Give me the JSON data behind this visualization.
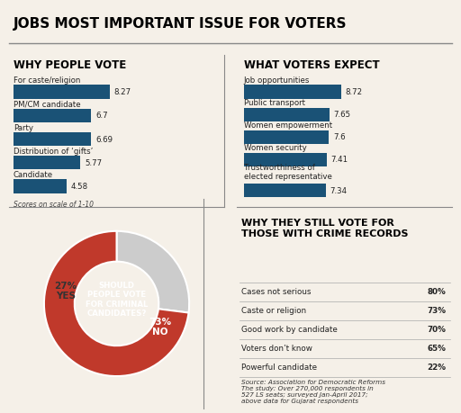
{
  "title": "JOBS MOST IMPORTANT ISSUE FOR VOTERS",
  "section1_title": "WHY PEOPLE VOTE",
  "section1_note": "Scores on scale of 1-10",
  "section1_labels": [
    "For caste/religion",
    "PM/CM candidate",
    "Party",
    "Distribution of ‘gifts’",
    "Candidate"
  ],
  "section1_values": [
    8.27,
    6.7,
    6.69,
    5.77,
    4.58
  ],
  "section2_title": "WHAT VOTERS EXPECT",
  "section2_labels": [
    "Job opportunities",
    "Public transport",
    "Women empowerment",
    "Women security",
    "Trustworthiness of\nelected representative"
  ],
  "section2_values": [
    8.72,
    7.65,
    7.6,
    7.41,
    7.34
  ],
  "section3_title": "WHY THEY STILL VOTE FOR\nTHOSE WITH CRIME RECORDS",
  "section3_labels": [
    "Cases not serious",
    "Caste or religion",
    "Good work by candidate",
    "Voters don’t know",
    "Powerful candidate"
  ],
  "section3_values": [
    "80%",
    "73%",
    "70%",
    "65%",
    "22%"
  ],
  "donut_title": "SHOULD\nPEOPLE VOTE\nFOR CRIMINAL\nCANDIDATES?",
  "donut_yes_pct": 27,
  "donut_no_pct": 73,
  "donut_yes_label": "27%\nYES",
  "donut_no_label": "73%\nNO",
  "bar_color": "#1a5276",
  "donut_yes_color": "#cccccc",
  "donut_no_color": "#c0392b",
  "source_text": "Source: Association for Democratic Reforms\nThe study: Over 270,000 respondents in\n527 LS seats; surveyed Jan-April 2017;\nabove data for Gujarat respondents",
  "bg_color": "#f5f0e8",
  "divider_color": "#888888"
}
